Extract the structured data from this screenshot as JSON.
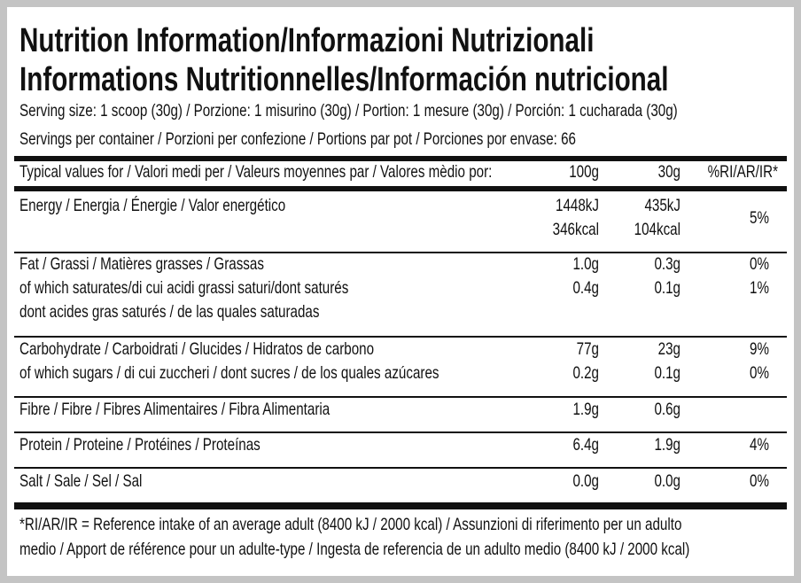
{
  "header": {
    "title_lines": [
      "Nutrition Information/Informazioni Nutrizionali",
      "Informations Nutritionnelles/Información nutricional"
    ],
    "serving_size": "Serving size: 1 scoop (30g) / Porzione: 1 misurino (30g) / Portion: 1 mesure (30g) / Porción: 1 cucharada (30g)",
    "servings_per_container": "Servings per container / Porzioni per confezione / Portions par pot / Porciones por envase: 66"
  },
  "table": {
    "columns": [
      "Typical values for / Valori medi per / Valeurs moyennes par / Valores mèdio por:",
      "100g",
      "30g",
      "%RI/AR/IR*"
    ],
    "rows": [
      {
        "label": [
          "Energy / Energia / Énergie / Valor energético"
        ],
        "per_100g": [
          "1448kJ",
          "346kcal"
        ],
        "per_30g": [
          "435kJ",
          "104kcal"
        ],
        "ri": [
          "5%"
        ]
      },
      {
        "label": [
          "Fat / Grassi / Matières grasses / Grassas",
          "of which saturates/di cui acidi grassi saturi/dont saturés",
          "dont acides gras saturés / de las quales saturadas"
        ],
        "per_100g": [
          "1.0g",
          "0.4g"
        ],
        "per_30g": [
          "0.3g",
          "0.1g"
        ],
        "ri": [
          "0%",
          "1%"
        ]
      },
      {
        "label": [
          "Carbohydrate / Carboidrati / Glucides / Hidratos de carbono",
          "of which sugars / di cui zuccheri / dont sucres / de los quales azúcares"
        ],
        "per_100g": [
          "77g",
          "0.2g"
        ],
        "per_30g": [
          "23g",
          "0.1g"
        ],
        "ri": [
          "9%",
          "0%"
        ]
      },
      {
        "label": [
          "Fibre / Fibre / Fibres Alimentaires / Fibra Alimentaria"
        ],
        "per_100g": [
          "1.9g"
        ],
        "per_30g": [
          "0.6g"
        ],
        "ri": []
      },
      {
        "label": [
          "Protein / Proteine / Protéines / Proteínas"
        ],
        "per_100g": [
          "6.4g"
        ],
        "per_30g": [
          "1.9g"
        ],
        "ri": [
          "4%"
        ]
      },
      {
        "label": [
          "Salt / Sale / Sel / Sal"
        ],
        "per_100g": [
          "0.0g"
        ],
        "per_30g": [
          "0.0g"
        ],
        "ri": [
          "0%"
        ]
      }
    ]
  },
  "footnote": [
    "*RI/AR/IR = Reference intake of an average adult (8400 kJ / 2000 kcal)  / Assunzioni di riferimento per un adulto",
    "medio / Apport de référence pour un adulte-type / Ingesta de referencia de un adulto medio (8400 kJ / 2000 kcal)"
  ]
}
